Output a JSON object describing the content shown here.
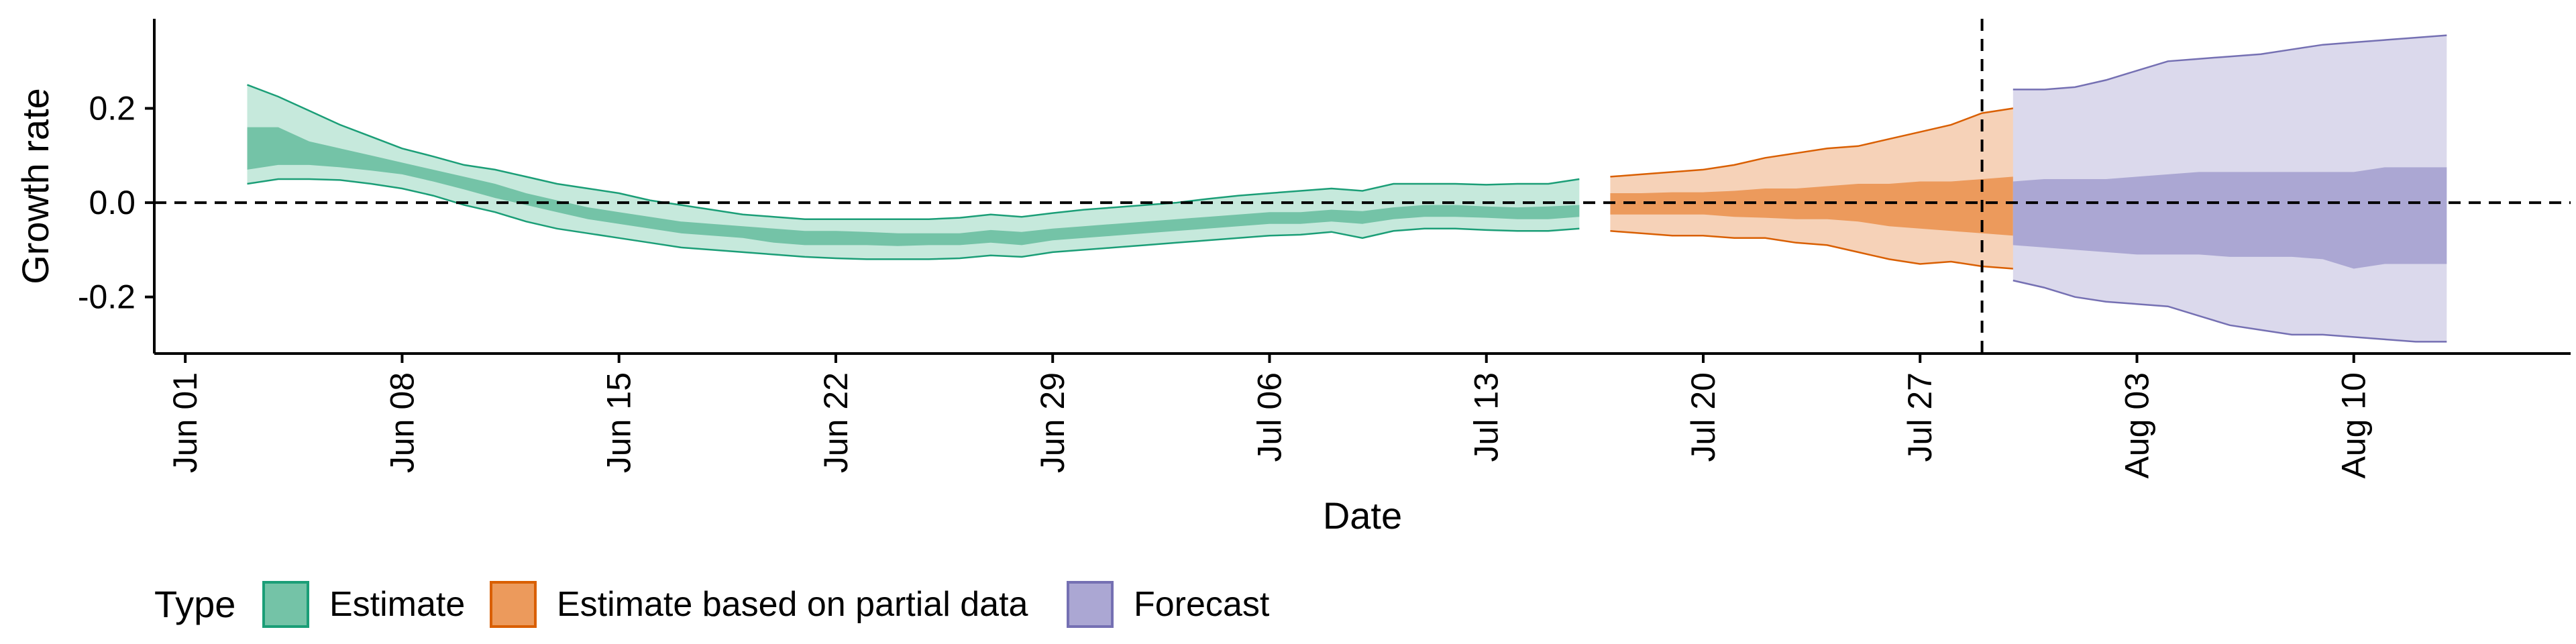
{
  "chart_data": {
    "type": "area",
    "xlabel": "Date",
    "ylabel": "Growth rate",
    "x_tick_labels": [
      "Jun 01",
      "Jun 08",
      "Jun 15",
      "Jun 22",
      "Jun 29",
      "Jul 06",
      "Jul 13",
      "Jul 20",
      "Jul 27",
      "Aug 03",
      "Aug 10"
    ],
    "x_tick_dates": [
      "2020-06-01",
      "2020-06-08",
      "2020-06-15",
      "2020-06-22",
      "2020-06-29",
      "2020-07-06",
      "2020-07-13",
      "2020-07-20",
      "2020-07-27",
      "2020-08-03",
      "2020-08-10"
    ],
    "y_tick_labels": [
      "0.2",
      "0.0",
      "-0.2"
    ],
    "y_tick_values": [
      0.2,
      0.0,
      -0.2
    ],
    "xlim": [
      "2020-05-31",
      "2020-08-17"
    ],
    "ylim": [
      -0.32,
      0.39
    ],
    "hline_y": 0,
    "vline_x": "2020-07-29",
    "grid": false,
    "legend": {
      "title": "Type",
      "position": "bottom-left",
      "items": [
        {
          "label": "Estimate",
          "color": "#74c3a7",
          "border": "#1b9e77"
        },
        {
          "label": "Estimate based on partial data",
          "color": "#ec9a5c",
          "border": "#d95f02"
        },
        {
          "label": "Forecast",
          "color": "#aba7d3",
          "border": "#7570b3"
        }
      ]
    },
    "series": [
      {
        "name": "Estimate",
        "colors": {
          "outer": "#c6e9dc",
          "inner": "#74c3a7",
          "edge": "#1b9e77"
        },
        "points": [
          {
            "x": "2020-06-03",
            "lo90": 0.04,
            "lo50": 0.07,
            "hi50": 0.16,
            "hi90": 0.25
          },
          {
            "x": "2020-06-04",
            "lo90": 0.05,
            "lo50": 0.08,
            "hi50": 0.16,
            "hi90": 0.225
          },
          {
            "x": "2020-06-05",
            "lo90": 0.05,
            "lo50": 0.08,
            "hi50": 0.13,
            "hi90": 0.195
          },
          {
            "x": "2020-06-06",
            "lo90": 0.048,
            "lo50": 0.075,
            "hi50": 0.115,
            "hi90": 0.165
          },
          {
            "x": "2020-06-07",
            "lo90": 0.04,
            "lo50": 0.068,
            "hi50": 0.1,
            "hi90": 0.14
          },
          {
            "x": "2020-06-08",
            "lo90": 0.03,
            "lo50": 0.06,
            "hi50": 0.085,
            "hi90": 0.115
          },
          {
            "x": "2020-06-09",
            "lo90": 0.015,
            "lo50": 0.045,
            "hi50": 0.07,
            "hi90": 0.098
          },
          {
            "x": "2020-06-10",
            "lo90": -0.005,
            "lo50": 0.028,
            "hi50": 0.055,
            "hi90": 0.08
          },
          {
            "x": "2020-06-11",
            "lo90": -0.02,
            "lo50": 0.01,
            "hi50": 0.04,
            "hi90": 0.07
          },
          {
            "x": "2020-06-12",
            "lo90": -0.04,
            "lo50": -0.005,
            "hi50": 0.02,
            "hi90": 0.055
          },
          {
            "x": "2020-06-13",
            "lo90": -0.055,
            "lo50": -0.02,
            "hi50": 0.005,
            "hi90": 0.04
          },
          {
            "x": "2020-06-14",
            "lo90": -0.065,
            "lo50": -0.035,
            "hi50": -0.01,
            "hi90": 0.03
          },
          {
            "x": "2020-06-15",
            "lo90": -0.075,
            "lo50": -0.045,
            "hi50": -0.02,
            "hi90": 0.02
          },
          {
            "x": "2020-06-16",
            "lo90": -0.085,
            "lo50": -0.055,
            "hi50": -0.03,
            "hi90": 0.005
          },
          {
            "x": "2020-06-17",
            "lo90": -0.095,
            "lo50": -0.065,
            "hi50": -0.04,
            "hi90": -0.005
          },
          {
            "x": "2020-06-18",
            "lo90": -0.1,
            "lo50": -0.07,
            "hi50": -0.045,
            "hi90": -0.015
          },
          {
            "x": "2020-06-19",
            "lo90": -0.105,
            "lo50": -0.075,
            "hi50": -0.05,
            "hi90": -0.025
          },
          {
            "x": "2020-06-20",
            "lo90": -0.11,
            "lo50": -0.085,
            "hi50": -0.055,
            "hi90": -0.03
          },
          {
            "x": "2020-06-21",
            "lo90": -0.115,
            "lo50": -0.09,
            "hi50": -0.06,
            "hi90": -0.035
          },
          {
            "x": "2020-06-22",
            "lo90": -0.118,
            "lo50": -0.09,
            "hi50": -0.06,
            "hi90": -0.035
          },
          {
            "x": "2020-06-23",
            "lo90": -0.12,
            "lo50": -0.09,
            "hi50": -0.062,
            "hi90": -0.035
          },
          {
            "x": "2020-06-24",
            "lo90": -0.12,
            "lo50": -0.092,
            "hi50": -0.065,
            "hi90": -0.035
          },
          {
            "x": "2020-06-25",
            "lo90": -0.12,
            "lo50": -0.09,
            "hi50": -0.065,
            "hi90": -0.035
          },
          {
            "x": "2020-06-26",
            "lo90": -0.118,
            "lo50": -0.09,
            "hi50": -0.065,
            "hi90": -0.032
          },
          {
            "x": "2020-06-27",
            "lo90": -0.112,
            "lo50": -0.085,
            "hi50": -0.058,
            "hi90": -0.025
          },
          {
            "x": "2020-06-28",
            "lo90": -0.115,
            "lo50": -0.09,
            "hi50": -0.062,
            "hi90": -0.03
          },
          {
            "x": "2020-06-29",
            "lo90": -0.105,
            "lo50": -0.08,
            "hi50": -0.055,
            "hi90": -0.022
          },
          {
            "x": "2020-06-30",
            "lo90": -0.1,
            "lo50": -0.075,
            "hi50": -0.05,
            "hi90": -0.015
          },
          {
            "x": "2020-07-01",
            "lo90": -0.095,
            "lo50": -0.07,
            "hi50": -0.045,
            "hi90": -0.01
          },
          {
            "x": "2020-07-02",
            "lo90": -0.09,
            "lo50": -0.065,
            "hi50": -0.04,
            "hi90": -0.005
          },
          {
            "x": "2020-07-03",
            "lo90": -0.085,
            "lo50": -0.06,
            "hi50": -0.035,
            "hi90": 0
          },
          {
            "x": "2020-07-04",
            "lo90": -0.08,
            "lo50": -0.055,
            "hi50": -0.03,
            "hi90": 0.008
          },
          {
            "x": "2020-07-05",
            "lo90": -0.075,
            "lo50": -0.05,
            "hi50": -0.025,
            "hi90": 0.015
          },
          {
            "x": "2020-07-06",
            "lo90": -0.07,
            "lo50": -0.045,
            "hi50": -0.02,
            "hi90": 0.02
          },
          {
            "x": "2020-07-07",
            "lo90": -0.068,
            "lo50": -0.045,
            "hi50": -0.02,
            "hi90": 0.025
          },
          {
            "x": "2020-07-08",
            "lo90": -0.062,
            "lo50": -0.04,
            "hi50": -0.015,
            "hi90": 0.03
          },
          {
            "x": "2020-07-09",
            "lo90": -0.075,
            "lo50": -0.045,
            "hi50": -0.018,
            "hi90": 0.025
          },
          {
            "x": "2020-07-10",
            "lo90": -0.06,
            "lo50": -0.035,
            "hi50": -0.01,
            "hi90": 0.04
          },
          {
            "x": "2020-07-11",
            "lo90": -0.055,
            "lo50": -0.03,
            "hi50": -0.005,
            "hi90": 0.04
          },
          {
            "x": "2020-07-12",
            "lo90": -0.055,
            "lo50": -0.03,
            "hi50": -0.005,
            "hi90": 0.04
          },
          {
            "x": "2020-07-13",
            "lo90": -0.058,
            "lo50": -0.032,
            "hi50": -0.008,
            "hi90": 0.038
          },
          {
            "x": "2020-07-14",
            "lo90": -0.06,
            "lo50": -0.035,
            "hi50": -0.01,
            "hi90": 0.04
          },
          {
            "x": "2020-07-15",
            "lo90": -0.06,
            "lo50": -0.035,
            "hi50": -0.008,
            "hi90": 0.04
          },
          {
            "x": "2020-07-16",
            "lo90": -0.055,
            "lo50": -0.03,
            "hi50": -0.005,
            "hi90": 0.05
          }
        ]
      },
      {
        "name": "Estimate based on partial data",
        "colors": {
          "outer": "#f6d2b8",
          "inner": "#ec9a5c",
          "edge": "#d95f02"
        },
        "points": [
          {
            "x": "2020-07-17",
            "lo90": -0.06,
            "lo50": -0.025,
            "hi50": 0.02,
            "hi90": 0.055
          },
          {
            "x": "2020-07-18",
            "lo90": -0.065,
            "lo50": -0.025,
            "hi50": 0.02,
            "hi90": 0.06
          },
          {
            "x": "2020-07-19",
            "lo90": -0.07,
            "lo50": -0.025,
            "hi50": 0.022,
            "hi90": 0.065
          },
          {
            "x": "2020-07-20",
            "lo90": -0.07,
            "lo50": -0.025,
            "hi50": 0.022,
            "hi90": 0.07
          },
          {
            "x": "2020-07-21",
            "lo90": -0.075,
            "lo50": -0.03,
            "hi50": 0.025,
            "hi90": 0.08
          },
          {
            "x": "2020-07-22",
            "lo90": -0.075,
            "lo50": -0.032,
            "hi50": 0.03,
            "hi90": 0.095
          },
          {
            "x": "2020-07-23",
            "lo90": -0.085,
            "lo50": -0.035,
            "hi50": 0.03,
            "hi90": 0.105
          },
          {
            "x": "2020-07-24",
            "lo90": -0.09,
            "lo50": -0.035,
            "hi50": 0.035,
            "hi90": 0.115
          },
          {
            "x": "2020-07-25",
            "lo90": -0.105,
            "lo50": -0.04,
            "hi50": 0.04,
            "hi90": 0.12
          },
          {
            "x": "2020-07-26",
            "lo90": -0.12,
            "lo50": -0.05,
            "hi50": 0.04,
            "hi90": 0.135
          },
          {
            "x": "2020-07-27",
            "lo90": -0.13,
            "lo50": -0.055,
            "hi50": 0.045,
            "hi90": 0.15
          },
          {
            "x": "2020-07-28",
            "lo90": -0.125,
            "lo50": -0.06,
            "hi50": 0.045,
            "hi90": 0.165
          },
          {
            "x": "2020-07-29",
            "lo90": -0.135,
            "lo50": -0.065,
            "hi50": 0.05,
            "hi90": 0.19
          },
          {
            "x": "2020-07-30",
            "lo90": -0.14,
            "lo50": -0.07,
            "hi50": 0.055,
            "hi90": 0.2
          },
          {
            "x": "2020-07-31",
            "lo90": -0.15,
            "lo50": -0.08,
            "hi50": 0.04,
            "hi90": 0.205
          },
          {
            "x": "2020-08-01",
            "lo90": -0.16,
            "lo50": -0.08,
            "hi50": 0.04,
            "hi90": 0.21
          }
        ]
      },
      {
        "name": "Forecast",
        "colors": {
          "outer": "#dbd9ec",
          "inner": "#aba7d3",
          "edge": "#7570b3"
        },
        "points": [
          {
            "x": "2020-07-30",
            "lo90": -0.165,
            "lo50": -0.09,
            "hi50": 0.045,
            "hi90": 0.24
          },
          {
            "x": "2020-07-31",
            "lo90": -0.18,
            "lo50": -0.095,
            "hi50": 0.05,
            "hi90": 0.24
          },
          {
            "x": "2020-08-01",
            "lo90": -0.2,
            "lo50": -0.1,
            "hi50": 0.05,
            "hi90": 0.245
          },
          {
            "x": "2020-08-02",
            "lo90": -0.21,
            "lo50": -0.105,
            "hi50": 0.05,
            "hi90": 0.26
          },
          {
            "x": "2020-08-03",
            "lo90": -0.215,
            "lo50": -0.11,
            "hi50": 0.055,
            "hi90": 0.28
          },
          {
            "x": "2020-08-04",
            "lo90": -0.22,
            "lo50": -0.11,
            "hi50": 0.06,
            "hi90": 0.3
          },
          {
            "x": "2020-08-05",
            "lo90": -0.24,
            "lo50": -0.11,
            "hi50": 0.065,
            "hi90": 0.305
          },
          {
            "x": "2020-08-06",
            "lo90": -0.26,
            "lo50": -0.115,
            "hi50": 0.065,
            "hi90": 0.31
          },
          {
            "x": "2020-08-07",
            "lo90": -0.27,
            "lo50": -0.115,
            "hi50": 0.065,
            "hi90": 0.315
          },
          {
            "x": "2020-08-08",
            "lo90": -0.28,
            "lo50": -0.115,
            "hi50": 0.065,
            "hi90": 0.325
          },
          {
            "x": "2020-08-09",
            "lo90": -0.28,
            "lo50": -0.12,
            "hi50": 0.065,
            "hi90": 0.335
          },
          {
            "x": "2020-08-10",
            "lo90": -0.285,
            "lo50": -0.14,
            "hi50": 0.065,
            "hi90": 0.34
          },
          {
            "x": "2020-08-11",
            "lo90": -0.29,
            "lo50": -0.13,
            "hi50": 0.075,
            "hi90": 0.345
          },
          {
            "x": "2020-08-12",
            "lo90": -0.295,
            "lo50": -0.13,
            "hi50": 0.075,
            "hi90": 0.35
          },
          {
            "x": "2020-08-13",
            "lo90": -0.295,
            "lo50": -0.13,
            "hi50": 0.075,
            "hi90": 0.355
          }
        ]
      }
    ]
  }
}
